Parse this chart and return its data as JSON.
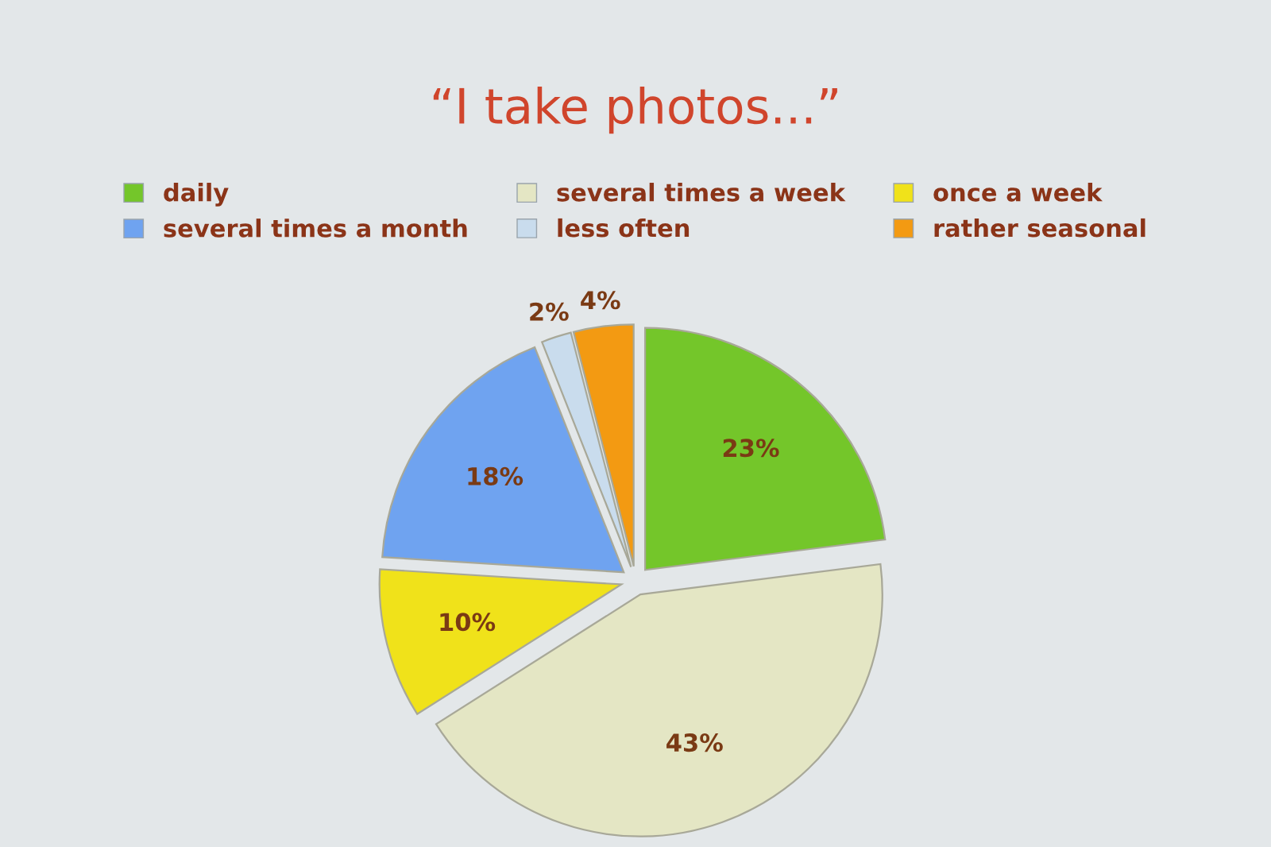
{
  "chart_data": {
    "type": "pie",
    "title": "“I take photos...”",
    "categories": [
      "daily",
      "several times a week",
      "once a week",
      "several times a month",
      "less often",
      "rather seasonal"
    ],
    "values": [
      23,
      43,
      10,
      18,
      2,
      4
    ],
    "colors": [
      "#74c62a",
      "#e4e6c4",
      "#f0e21a",
      "#6fa3f0",
      "#c9dced",
      "#f39a12"
    ],
    "value_labels": [
      "23%",
      "43%",
      "10%",
      "18%",
      "2%",
      "4%"
    ],
    "legend": "top"
  }
}
